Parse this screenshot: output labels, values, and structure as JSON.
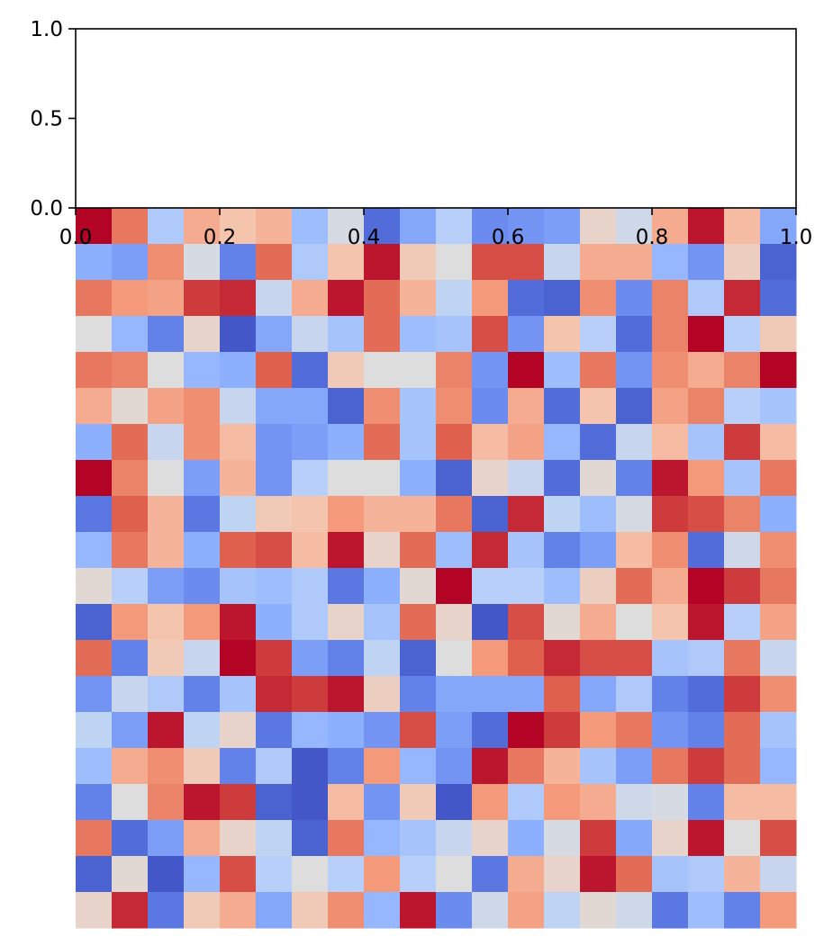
{
  "chart_data": [
    {
      "type": "line",
      "series": [],
      "xlim": [
        0.0,
        1.0
      ],
      "ylim": [
        0.0,
        1.0
      ],
      "x_ticks": [
        0.0,
        0.2,
        0.4,
        0.6,
        0.8,
        1.0
      ],
      "x_tick_labels": [
        "0.0",
        "0.2",
        "0.4",
        "0.6",
        "0.8",
        "1.0"
      ],
      "y_ticks": [
        0.0,
        0.5,
        1.0
      ],
      "y_tick_labels": [
        "0.0",
        "0.5",
        "1.0"
      ],
      "grid": false,
      "title": "",
      "xlabel": "",
      "ylabel": ""
    },
    {
      "type": "heatmap",
      "colormap": "coolwarm",
      "value_range": [
        -1,
        1
      ],
      "rows": 20,
      "cols": 20,
      "axes_visible": false,
      "values": [
        [
          1.0,
          0.65,
          -0.3,
          0.4,
          0.25,
          0.35,
          -0.4,
          -0.05,
          -0.85,
          -0.55,
          -0.25,
          -0.7,
          -0.65,
          -0.6,
          0.1,
          -0.1,
          0.4,
          0.95,
          0.3,
          -0.55
        ],
        [
          -0.5,
          -0.6,
          0.55,
          -0.05,
          -0.75,
          0.7,
          -0.3,
          0.25,
          0.95,
          0.2,
          0.0,
          0.8,
          0.8,
          -0.15,
          0.4,
          0.4,
          -0.45,
          -0.65,
          0.15,
          -0.9
        ],
        [
          0.65,
          0.5,
          0.45,
          0.85,
          0.9,
          -0.15,
          0.4,
          0.95,
          0.7,
          0.35,
          -0.2,
          0.5,
          -0.85,
          -0.9,
          0.55,
          -0.7,
          0.6,
          -0.3,
          0.9,
          -0.85
        ],
        [
          0.0,
          -0.45,
          -0.75,
          0.1,
          -0.95,
          -0.55,
          -0.15,
          -0.35,
          0.7,
          -0.4,
          -0.35,
          0.8,
          -0.65,
          0.25,
          -0.25,
          -0.85,
          0.6,
          1.0,
          -0.25,
          0.2
        ],
        [
          0.65,
          0.6,
          0.0,
          -0.45,
          -0.5,
          0.75,
          -0.85,
          0.2,
          0.0,
          0.0,
          0.6,
          -0.65,
          1.0,
          -0.4,
          0.65,
          -0.65,
          0.55,
          0.4,
          0.6,
          1.0
        ],
        [
          0.4,
          0.05,
          0.45,
          0.55,
          -0.15,
          -0.55,
          -0.55,
          -0.9,
          0.55,
          -0.35,
          0.55,
          -0.7,
          0.4,
          -0.85,
          0.25,
          -0.9,
          0.45,
          0.6,
          -0.25,
          -0.35
        ],
        [
          -0.5,
          0.7,
          -0.15,
          0.55,
          0.3,
          -0.65,
          -0.6,
          -0.5,
          0.7,
          -0.35,
          0.75,
          0.3,
          0.45,
          -0.45,
          -0.85,
          -0.15,
          0.3,
          -0.35,
          0.85,
          0.3
        ],
        [
          1.0,
          0.6,
          0.0,
          -0.6,
          0.35,
          -0.65,
          -0.25,
          0.0,
          0.0,
          -0.5,
          -0.9,
          0.1,
          -0.15,
          -0.85,
          0.05,
          -0.75,
          0.95,
          0.5,
          -0.35,
          0.65
        ],
        [
          -0.8,
          0.75,
          0.35,
          -0.8,
          -0.2,
          0.2,
          0.25,
          0.5,
          0.35,
          0.35,
          0.65,
          -0.9,
          0.9,
          -0.2,
          -0.4,
          -0.05,
          0.85,
          0.8,
          0.6,
          -0.5
        ],
        [
          -0.45,
          0.65,
          0.35,
          -0.5,
          0.75,
          0.8,
          0.3,
          0.95,
          0.1,
          0.7,
          -0.4,
          0.9,
          -0.35,
          -0.75,
          -0.6,
          0.3,
          0.55,
          -0.85,
          -0.1,
          0.55
        ],
        [
          0.05,
          -0.25,
          -0.6,
          -0.7,
          -0.35,
          -0.4,
          -0.3,
          -0.8,
          -0.5,
          0.05,
          1.0,
          -0.25,
          -0.25,
          -0.4,
          0.15,
          0.7,
          0.4,
          1.0,
          0.85,
          0.65
        ],
        [
          -0.9,
          0.5,
          0.25,
          0.5,
          0.95,
          -0.5,
          -0.3,
          0.1,
          -0.35,
          0.7,
          0.1,
          -0.95,
          0.8,
          0.05,
          0.4,
          0.0,
          0.25,
          0.95,
          -0.25,
          0.45
        ],
        [
          0.7,
          -0.75,
          0.2,
          -0.15,
          1.0,
          0.85,
          -0.6,
          -0.75,
          -0.2,
          -0.9,
          0.0,
          0.5,
          0.75,
          0.9,
          0.8,
          0.8,
          -0.35,
          -0.3,
          0.65,
          -0.15
        ],
        [
          -0.65,
          -0.15,
          -0.3,
          -0.75,
          -0.35,
          0.9,
          0.85,
          0.95,
          0.15,
          -0.75,
          -0.55,
          -0.55,
          -0.55,
          0.75,
          -0.55,
          -0.3,
          -0.75,
          -0.85,
          0.85,
          0.55
        ],
        [
          -0.2,
          -0.6,
          0.95,
          -0.2,
          0.1,
          -0.8,
          -0.45,
          -0.5,
          -0.65,
          0.8,
          -0.6,
          -0.85,
          1.0,
          0.85,
          0.5,
          0.65,
          -0.65,
          -0.75,
          0.7,
          -0.35
        ],
        [
          -0.4,
          0.4,
          0.55,
          0.2,
          -0.75,
          -0.3,
          -0.95,
          -0.75,
          0.5,
          -0.45,
          -0.65,
          0.95,
          0.65,
          0.35,
          -0.35,
          -0.6,
          0.65,
          0.85,
          0.7,
          -0.45
        ],
        [
          -0.75,
          0.0,
          0.6,
          0.95,
          0.85,
          -0.9,
          -0.95,
          0.3,
          -0.65,
          0.2,
          -0.95,
          0.5,
          -0.3,
          0.5,
          0.4,
          -0.1,
          -0.05,
          -0.75,
          0.3,
          0.3
        ],
        [
          0.65,
          -0.85,
          -0.6,
          0.4,
          0.1,
          -0.2,
          -0.9,
          0.65,
          -0.45,
          -0.35,
          -0.15,
          0.1,
          -0.5,
          -0.05,
          0.85,
          -0.55,
          0.1,
          0.95,
          0.0,
          0.8
        ],
        [
          -0.9,
          0.05,
          -0.95,
          -0.45,
          0.8,
          -0.25,
          0.0,
          -0.25,
          0.5,
          -0.25,
          0.0,
          -0.8,
          0.4,
          0.1,
          0.95,
          0.7,
          -0.35,
          -0.3,
          0.35,
          -0.15
        ],
        [
          0.1,
          0.9,
          -0.8,
          0.2,
          0.4,
          -0.55,
          0.2,
          0.55,
          -0.45,
          0.95,
          -0.7,
          -0.1,
          0.45,
          -0.2,
          0.05,
          -0.1,
          -0.8,
          -0.4,
          -0.75,
          0.5
        ]
      ]
    }
  ]
}
